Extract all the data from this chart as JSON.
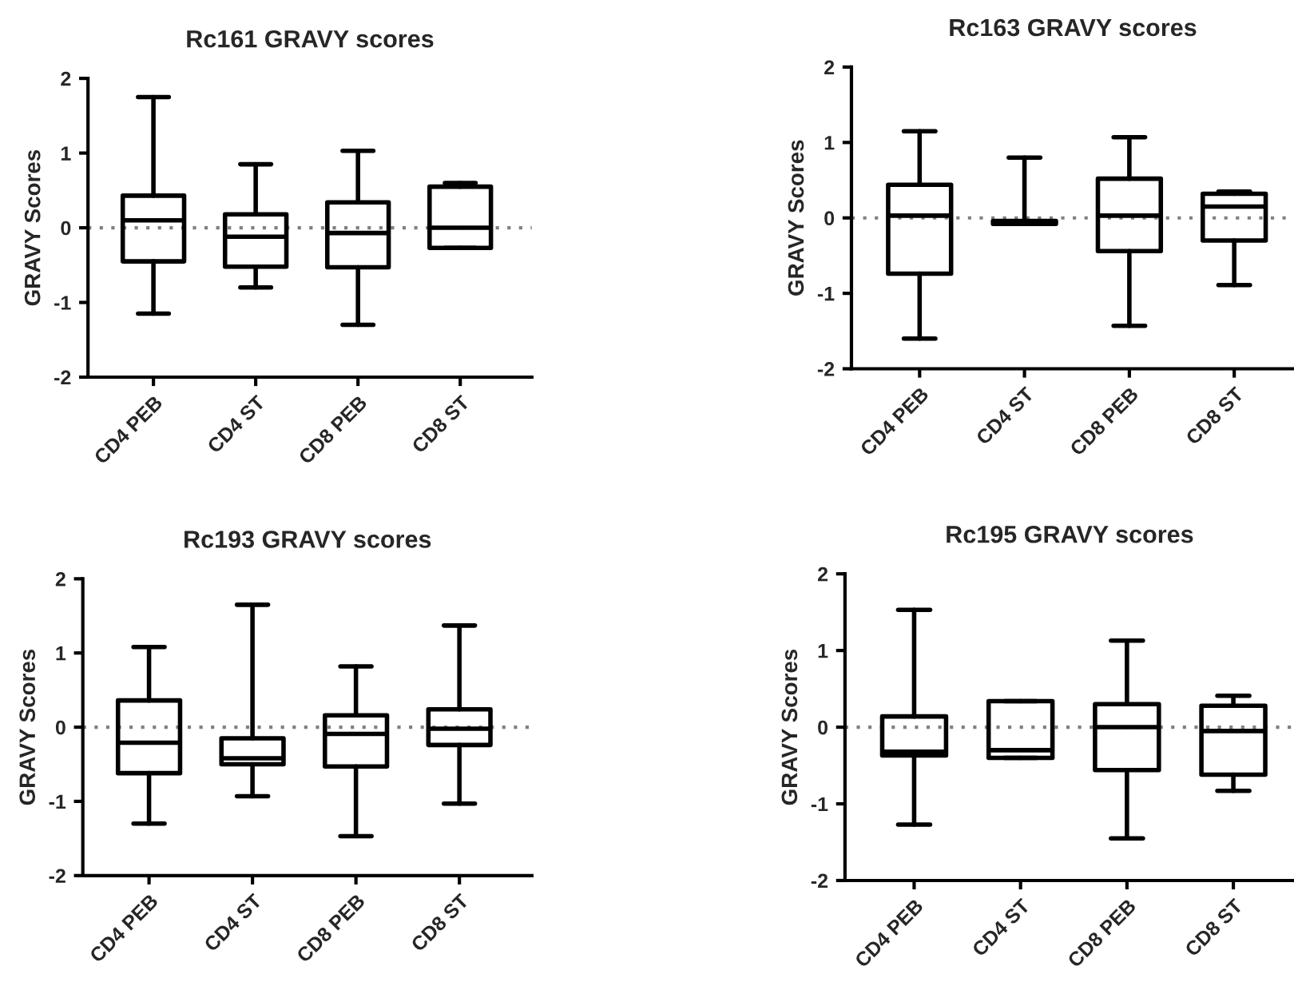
{
  "chart_data": [
    {
      "type": "box",
      "title": "Rc161 GRAVY scores",
      "ylabel": "GRAVY Scores",
      "categories": [
        "CD4 PEB",
        "CD4 ST",
        "CD8 PEB",
        "CD8 ST"
      ],
      "ylim": [
        -2,
        2
      ],
      "yticks": [
        -2,
        -1,
        0,
        1,
        2
      ],
      "ref_lines": [
        {
          "axis": "y",
          "value": 0,
          "line_style": "dotted",
          "color": "#808080"
        }
      ],
      "boxes": [
        {
          "low": -1.15,
          "q1": -0.45,
          "median": 0.1,
          "q3": 0.43,
          "high": 1.75
        },
        {
          "low": -0.8,
          "q1": -0.52,
          "median": -0.12,
          "q3": 0.18,
          "high": 0.85
        },
        {
          "low": -1.3,
          "q1": -0.53,
          "median": -0.07,
          "q3": 0.34,
          "high": 1.03
        },
        {
          "low": -0.27,
          "q1": -0.27,
          "median": 0.0,
          "q3": 0.55,
          "high": 0.6
        }
      ]
    },
    {
      "type": "box",
      "title": "Rc163 GRAVY scores",
      "ylabel": "GRAVY Scores",
      "categories": [
        "CD4 PEB",
        "CD4 ST",
        "CD8 PEB",
        "CD8 ST"
      ],
      "ylim": [
        -2,
        2
      ],
      "yticks": [
        -2,
        -1,
        0,
        1,
        2
      ],
      "ref_lines": [
        {
          "axis": "y",
          "value": 0,
          "line_style": "dotted",
          "color": "#808080"
        }
      ],
      "boxes": [
        {
          "low": -1.6,
          "q1": -0.74,
          "median": 0.03,
          "q3": 0.44,
          "high": 1.15
        },
        {
          "low": -0.08,
          "q1": -0.08,
          "median": -0.06,
          "q3": -0.04,
          "high": 0.8
        },
        {
          "low": -1.43,
          "q1": -0.44,
          "median": 0.03,
          "q3": 0.52,
          "high": 1.07
        },
        {
          "low": -0.89,
          "q1": -0.3,
          "median": 0.15,
          "q3": 0.32,
          "high": 0.35
        }
      ]
    },
    {
      "type": "box",
      "title": "Rc193 GRAVY scores",
      "ylabel": "GRAVY Scores",
      "categories": [
        "CD4 PEB",
        "CD4 ST",
        "CD8 PEB",
        "CD8 ST"
      ],
      "ylim": [
        -2,
        2
      ],
      "yticks": [
        -2,
        -1,
        0,
        1,
        2
      ],
      "ref_lines": [
        {
          "axis": "y",
          "value": 0,
          "line_style": "dotted",
          "color": "#808080"
        }
      ],
      "boxes": [
        {
          "low": -1.3,
          "q1": -0.62,
          "median": -0.21,
          "q3": 0.36,
          "high": 1.08
        },
        {
          "low": -0.93,
          "q1": -0.5,
          "median": -0.42,
          "q3": -0.15,
          "high": 1.65
        },
        {
          "low": -1.47,
          "q1": -0.53,
          "median": -0.09,
          "q3": 0.16,
          "high": 0.82
        },
        {
          "low": -1.03,
          "q1": -0.24,
          "median": -0.02,
          "q3": 0.24,
          "high": 1.37
        }
      ]
    },
    {
      "type": "box",
      "title": "Rc195 GRAVY scores",
      "ylabel": "GRAVY Scores",
      "categories": [
        "CD4 PEB",
        "CD4 ST",
        "CD8 PEB",
        "CD8 ST"
      ],
      "ylim": [
        -2,
        2
      ],
      "yticks": [
        -2,
        -1,
        0,
        1,
        2
      ],
      "ref_lines": [
        {
          "axis": "y",
          "value": 0,
          "line_style": "dotted",
          "color": "#808080"
        }
      ],
      "boxes": [
        {
          "low": -1.27,
          "q1": -0.37,
          "median": -0.32,
          "q3": 0.14,
          "high": 1.53
        },
        {
          "low": -0.4,
          "q1": -0.4,
          "median": -0.3,
          "q3": 0.34,
          "high": 0.34
        },
        {
          "low": -1.45,
          "q1": -0.56,
          "median": 0.0,
          "q3": 0.3,
          "high": 1.13
        },
        {
          "low": -0.83,
          "q1": -0.62,
          "median": -0.05,
          "q3": 0.28,
          "high": 0.41
        }
      ]
    }
  ]
}
